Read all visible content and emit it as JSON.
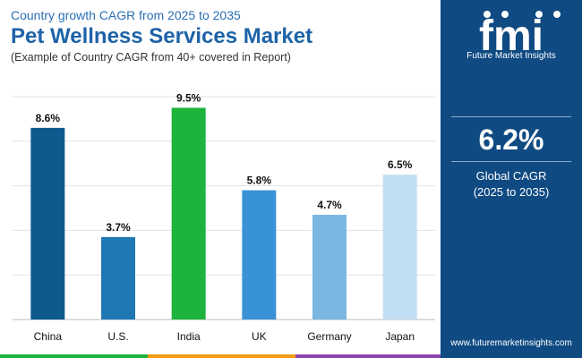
{
  "header": {
    "subtitle": "Country growth CAGR from 2025 to 2035",
    "title": "Pet Wellness Services Market",
    "note": "(Example of Country CAGR from 40+ covered in Report)"
  },
  "chart_data": {
    "type": "bar",
    "title": "Pet Wellness Services Market",
    "categories": [
      "China",
      "U.S.",
      "India",
      "UK",
      "Germany",
      "Japan"
    ],
    "values": [
      8.6,
      3.7,
      9.5,
      5.8,
      4.7,
      6.5
    ],
    "value_labels": [
      "8.6%",
      "3.7%",
      "9.5%",
      "5.8%",
      "4.7%",
      "6.5%"
    ],
    "colors": [
      "#0d5a8f",
      "#1f77b4",
      "#1eb33c",
      "#3a92d6",
      "#7ab7e2",
      "#c2def2"
    ],
    "ylim": [
      0,
      10
    ],
    "grid": true,
    "xlabel": "",
    "ylabel": ""
  },
  "panel": {
    "logo_text": "fmi",
    "logo_sub": "Future Market Insights",
    "cagr_value": "6.2%",
    "cagr_label_line1": "Global CAGR",
    "cagr_label_line2": "(2025 to 2035)",
    "website": "www.futuremarketinsights.com"
  },
  "colors": {
    "panel_bg": "#0f4a82",
    "title": "#1e63a8",
    "stripe": [
      "#1eb33c",
      "#f39c12",
      "#8e44ad",
      "#0f4a82"
    ]
  }
}
